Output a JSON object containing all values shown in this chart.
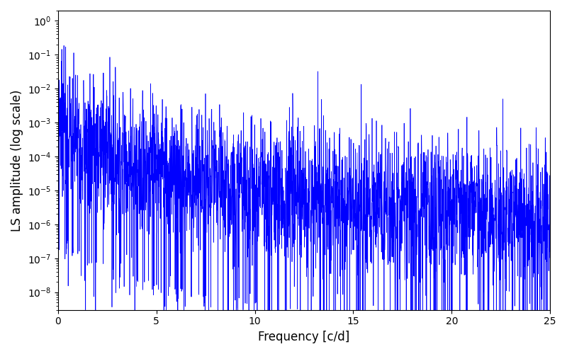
{
  "title": "",
  "xlabel": "Frequency [c/d]",
  "ylabel": "LS amplitude (log scale)",
  "xlim": [
    0,
    25
  ],
  "ylim_bottom": 3e-09,
  "ylim_top": 2.0,
  "line_color": "#0000ff",
  "line_width": 0.5,
  "figsize": [
    8.0,
    5.0
  ],
  "dpi": 100,
  "freq_min": 0.0,
  "freq_max": 25.0,
  "n_points": 3000,
  "seed": 7
}
